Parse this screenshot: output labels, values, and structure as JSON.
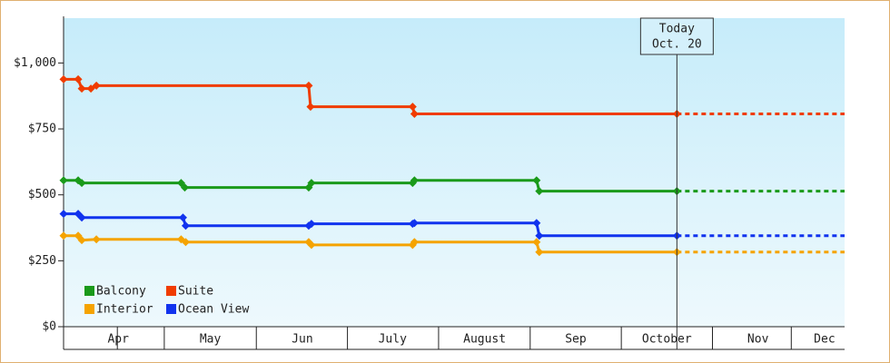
{
  "chart_data": {
    "type": "line",
    "step_markers": "diamond",
    "xlim": [
      -0.12,
      8.45
    ],
    "ylim": [
      0,
      1170
    ],
    "yticks": [
      {
        "value": 0,
        "label": "$0"
      },
      {
        "value": 250,
        "label": "$250"
      },
      {
        "value": 500,
        "label": "$500"
      },
      {
        "value": 750,
        "label": "$750"
      },
      {
        "value": 1000,
        "label": "$1,000"
      }
    ],
    "xticks": [
      {
        "value": 0.48,
        "label": "Apr"
      },
      {
        "value": 1.49,
        "label": "May"
      },
      {
        "value": 2.5,
        "label": "Jun"
      },
      {
        "value": 3.49,
        "label": "July"
      },
      {
        "value": 4.5,
        "label": "August"
      },
      {
        "value": 5.5,
        "label": "Sep"
      },
      {
        "value": 6.5,
        "label": "October"
      },
      {
        "value": 7.5,
        "label": "Nov"
      },
      {
        "value": 8.23,
        "label": "Dec"
      }
    ],
    "today": {
      "x": 6.61,
      "label": [
        "Today",
        "Oct. 20"
      ]
    },
    "series": [
      {
        "name": "Balcony",
        "color": "#1a9a1a",
        "x": [
          -0.12,
          0.04,
          0.08,
          1.17,
          1.21,
          2.57,
          2.6,
          3.71,
          3.73,
          5.07,
          5.1,
          6.61
        ],
        "values": [
          555,
          555,
          545,
          545,
          528,
          528,
          545,
          545,
          555,
          555,
          514,
          514
        ]
      },
      {
        "name": "Suite",
        "color": "#f03c00",
        "x": [
          -0.12,
          0.04,
          0.08,
          0.18,
          0.24,
          2.57,
          2.59,
          3.71,
          3.73,
          6.61
        ],
        "values": [
          938,
          938,
          903,
          903,
          914,
          914,
          834,
          834,
          807,
          807
        ]
      },
      {
        "name": "Interior",
        "color": "#f5a300",
        "x": [
          -0.12,
          0.04,
          0.08,
          0.24,
          1.17,
          1.22,
          2.57,
          2.6,
          3.71,
          3.73,
          5.07,
          5.1,
          6.61
        ],
        "values": [
          345,
          345,
          328,
          331,
          331,
          321,
          321,
          310,
          310,
          321,
          321,
          283,
          283
        ]
      },
      {
        "name": "Ocean View",
        "color": "#1133ee",
        "x": [
          -0.12,
          0.04,
          0.08,
          1.19,
          1.22,
          2.57,
          2.6,
          3.71,
          3.73,
          5.07,
          5.1,
          6.61
        ],
        "values": [
          428,
          428,
          414,
          414,
          383,
          383,
          390,
          390,
          393,
          393,
          345,
          345
        ]
      }
    ]
  }
}
